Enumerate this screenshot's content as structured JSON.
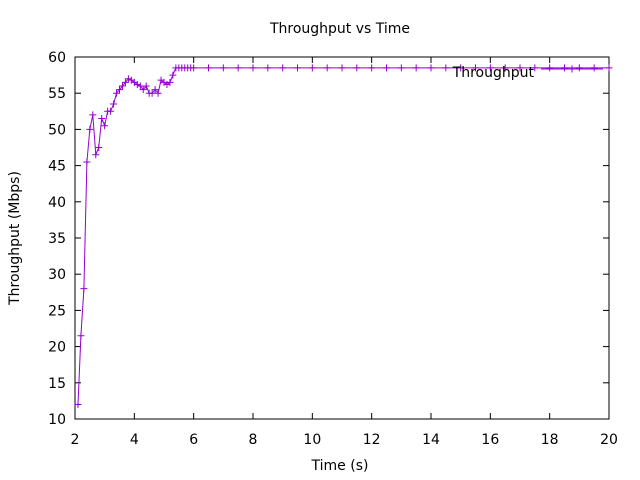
{
  "chart_data": {
    "type": "line",
    "title": "Throughput vs Time",
    "xlabel": "Time (s)",
    "ylabel": "Throughput (Mbps)",
    "xlim": [
      2,
      20
    ],
    "ylim": [
      10,
      60
    ],
    "xticks": [
      2,
      4,
      6,
      8,
      10,
      12,
      14,
      16,
      18,
      20
    ],
    "yticks": [
      10,
      15,
      20,
      25,
      30,
      35,
      40,
      45,
      50,
      55,
      60
    ],
    "grid": false,
    "legend_position": "top-right",
    "colors": {
      "series": "#9400d3",
      "axis": "#000000"
    },
    "series": [
      {
        "name": "Throughput",
        "marker": "plus",
        "x": [
          2.1,
          2.2,
          2.3,
          2.4,
          2.5,
          2.6,
          2.7,
          2.8,
          2.9,
          3.0,
          3.1,
          3.2,
          3.3,
          3.4,
          3.5,
          3.6,
          3.7,
          3.8,
          3.9,
          4.0,
          4.1,
          4.2,
          4.3,
          4.4,
          4.5,
          4.6,
          4.7,
          4.8,
          4.9,
          5.0,
          5.1,
          5.2,
          5.3,
          5.4,
          5.5,
          5.6,
          5.7,
          5.8,
          5.9,
          6.0,
          6.5,
          7.0,
          7.5,
          8.0,
          8.5,
          9.0,
          9.5,
          10.0,
          10.5,
          11.0,
          11.5,
          12.0,
          12.5,
          13.0,
          13.5,
          14.0,
          14.5,
          15.0,
          15.5,
          16.0,
          16.5,
          17.0,
          17.5,
          18.0,
          18.5,
          19.0,
          19.5,
          20.0
        ],
        "y": [
          12.0,
          21.5,
          28.0,
          45.5,
          50.0,
          52.0,
          46.5,
          47.5,
          51.5,
          50.5,
          52.5,
          52.5,
          53.5,
          55.0,
          55.5,
          56.0,
          56.5,
          57.0,
          56.8,
          56.5,
          56.2,
          56.0,
          55.5,
          56.0,
          55.0,
          55.0,
          55.5,
          55.0,
          56.8,
          56.5,
          56.2,
          56.5,
          57.5,
          58.5,
          58.5,
          58.5,
          58.5,
          58.5,
          58.5,
          58.5,
          58.5,
          58.5,
          58.5,
          58.5,
          58.5,
          58.5,
          58.5,
          58.5,
          58.5,
          58.5,
          58.5,
          58.5,
          58.5,
          58.5,
          58.5,
          58.5,
          58.5,
          58.5,
          58.5,
          58.5,
          58.5,
          58.5,
          58.5,
          58.5,
          58.5,
          58.5,
          58.5,
          58.5
        ]
      }
    ]
  }
}
